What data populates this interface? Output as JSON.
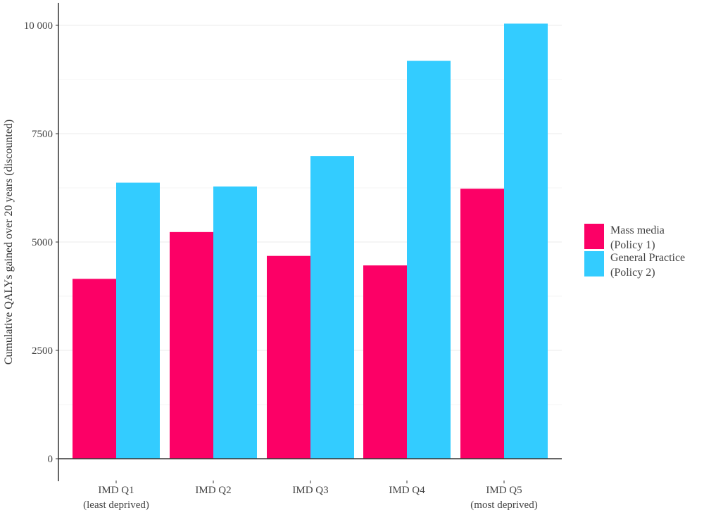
{
  "chart_data": {
    "type": "bar",
    "title": "",
    "xlabel": "",
    "ylabel": "Cumulative QALYs gained over 20 years (discounted)",
    "categories": [
      [
        "IMD Q1",
        "(least deprived)"
      ],
      [
        "IMD Q2"
      ],
      [
        "IMD Q3"
      ],
      [
        "IMD Q4"
      ],
      [
        "IMD Q5",
        "(most deprived)"
      ]
    ],
    "series": [
      {
        "name": [
          "Mass media",
          "(Policy 1)"
        ],
        "color": "#fc0066",
        "values": [
          4150,
          5230,
          4680,
          4460,
          6230
        ]
      },
      {
        "name": [
          "General Practice",
          "(Policy 2)"
        ],
        "color": "#33ccff",
        "values": [
          6370,
          6280,
          6980,
          9180,
          10040
        ]
      }
    ],
    "ylim": [
      0,
      10000
    ],
    "yticks": [
      0,
      2500,
      5000,
      7500,
      10000
    ],
    "ytick_labels": [
      "0",
      "2500",
      "5000",
      "7500",
      "10 000"
    ],
    "grid": "horizontal",
    "legend_position": "right"
  }
}
